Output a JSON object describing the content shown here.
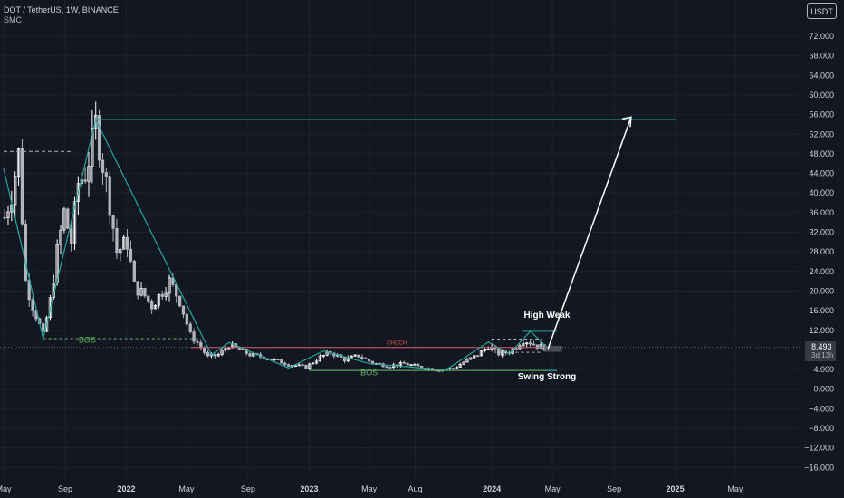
{
  "header": {
    "title": "DOT / TetherUS, 1W, BINANCE",
    "indicator": "SMC",
    "currency": "USDT"
  },
  "price_tag": {
    "price": "8.493",
    "countdown": "3d 13h"
  },
  "colors": {
    "background": "#131722",
    "up": "#ffffff",
    "down": "#b2b5be",
    "trend": "#26a69a",
    "bos": "#66bb6a",
    "choch": "#ef5350",
    "projection": "#ffffff",
    "axis_text": "#d1d4dc"
  },
  "chart_data": {
    "type": "candlestick",
    "title": "DOT / TetherUS, 1W, BINANCE",
    "xlabel": "",
    "ylabel": "",
    "ylim": [
      -18,
      75
    ],
    "y_ticks": [
      "72.000",
      "68.000",
      "64.000",
      "60.000",
      "56.000",
      "52.000",
      "48.000",
      "44.000",
      "40.000",
      "36.000",
      "32.000",
      "28.000",
      "24.000",
      "20.000",
      "16.000",
      "12.000",
      "8.000",
      "4.000",
      "0.000",
      "−4.000",
      "−8.000",
      "−12.000",
      "−16.000"
    ],
    "x_ticks": [
      "May",
      "Sep",
      "2022",
      "May",
      "Sep",
      "2023",
      "May",
      "Aug",
      "2024",
      "May",
      "Sep",
      "2025",
      "May"
    ],
    "close_path": [
      [
        "2021-05-03",
        35
      ],
      [
        "2021-05-17",
        40
      ],
      [
        "2021-05-31",
        48
      ],
      [
        "2021-06-14",
        22
      ],
      [
        "2021-06-28",
        17
      ],
      [
        "2021-07-12",
        13
      ],
      [
        "2021-07-19",
        11
      ],
      [
        "2021-08-02",
        18
      ],
      [
        "2021-08-16",
        28
      ],
      [
        "2021-08-30",
        36
      ],
      [
        "2021-09-13",
        30
      ],
      [
        "2021-09-27",
        42
      ],
      [
        "2021-10-11",
        44
      ],
      [
        "2021-10-25",
        50
      ],
      [
        "2021-11-01",
        54
      ],
      [
        "2021-11-15",
        46
      ],
      [
        "2021-11-29",
        38
      ],
      [
        "2021-12-13",
        28
      ],
      [
        "2022-01-03",
        30
      ],
      [
        "2022-01-17",
        21
      ],
      [
        "2022-02-07",
        19
      ],
      [
        "2022-02-21",
        17
      ],
      [
        "2022-03-14",
        20
      ],
      [
        "2022-03-28",
        22
      ],
      [
        "2022-04-18",
        18
      ],
      [
        "2022-05-09",
        11
      ],
      [
        "2022-05-23",
        9.5
      ],
      [
        "2022-06-13",
        6.5
      ],
      [
        "2022-07-04",
        7
      ],
      [
        "2022-07-25",
        9
      ],
      [
        "2022-08-15",
        8
      ],
      [
        "2022-09-05",
        7
      ],
      [
        "2022-10-03",
        6.5
      ],
      [
        "2022-11-07",
        5.5
      ],
      [
        "2022-11-21",
        5
      ],
      [
        "2022-12-26",
        4.5
      ],
      [
        "2023-01-23",
        6.5
      ],
      [
        "2023-02-13",
        7.5
      ],
      [
        "2023-03-13",
        6
      ],
      [
        "2023-04-10",
        6.8
      ],
      [
        "2023-05-08",
        5.3
      ],
      [
        "2023-06-12",
        4.7
      ],
      [
        "2023-07-10",
        5.2
      ],
      [
        "2023-08-14",
        4.4
      ],
      [
        "2023-09-11",
        4.0
      ],
      [
        "2023-10-16",
        4.2
      ],
      [
        "2023-11-06",
        5.5
      ],
      [
        "2023-12-04",
        7
      ],
      [
        "2023-12-25",
        8.8
      ],
      [
        "2024-01-15",
        7.2
      ],
      [
        "2024-02-05",
        7.6
      ],
      [
        "2024-03-04",
        10
      ],
      [
        "2024-03-18",
        9.5
      ],
      [
        "2024-04-01",
        8.8
      ],
      [
        "2024-04-15",
        8.5
      ]
    ],
    "annotations": [
      {
        "text": "BOS",
        "date": "2021-10-15",
        "price": 9.5,
        "color": "#66bb6a"
      },
      {
        "text": "BOS",
        "date": "2023-05-01",
        "price": 2.8,
        "color": "#66bb6a"
      },
      {
        "text": "CHOCH",
        "date": "2023-06-25",
        "price": 9.1,
        "color": "#ef5350"
      },
      {
        "text": "High Weak",
        "date": "2024-04-20",
        "price": 14.5,
        "color": "#ffffff"
      },
      {
        "text": "Swing Strong",
        "date": "2024-04-20",
        "price": 2.0,
        "color": "#ffffff"
      }
    ],
    "current_price": 8.493
  }
}
